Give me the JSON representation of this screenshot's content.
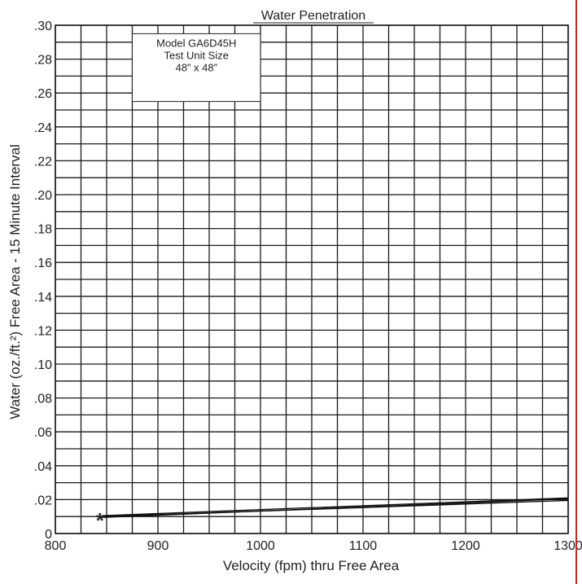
{
  "chart_data": {
    "type": "line",
    "title": "Water Penetration",
    "xlabel": "Velocity (fpm) thru Free Area",
    "ylabel": "Water (oz./ft.²) Free Area - 15 Minute Interval",
    "xlim": [
      800,
      1300
    ],
    "ylim": [
      0,
      0.3
    ],
    "x_ticks": [
      800,
      900,
      1000,
      1100,
      1200,
      1300
    ],
    "x_tick_labels": [
      "800",
      "900",
      "1000",
      "1100",
      "1200",
      "1300"
    ],
    "y_ticks": [
      0,
      0.02,
      0.04,
      0.06,
      0.08,
      0.1,
      0.12,
      0.14,
      0.16,
      0.18,
      0.2,
      0.22,
      0.24,
      0.26,
      0.28,
      0.3
    ],
    "y_tick_labels": [
      "0",
      ".02",
      ".04",
      ".06",
      ".08",
      ".10",
      ".12",
      ".14",
      ".16",
      ".18",
      ".20",
      ".22",
      ".24",
      ".26",
      ".28",
      ".30"
    ],
    "grid": true,
    "x_minor_step": 25,
    "y_minor_step": 0.01,
    "annotation_lines": [
      "Model GA6D45H",
      "Test Unit Size",
      "48” x 48”"
    ],
    "legend_position": "top-center",
    "marker_point": {
      "x": 845,
      "y": 0.01,
      "symbol": "*"
    },
    "series": [
      {
        "x": [
          845,
          1300
        ],
        "y": [
          0.0095,
          0.0205
        ],
        "color": "#111111"
      },
      {
        "x": [
          845,
          1300
        ],
        "y": [
          0.01,
          0.0195
        ],
        "color": "#111111"
      },
      {
        "x": [
          845,
          1300
        ],
        "y": [
          0.0105,
          0.021
        ],
        "color": "#111111"
      }
    ],
    "colors": {
      "grid": "#1a1a1a",
      "frame": "#1a1a1a",
      "accent_rule": "#c62828"
    }
  }
}
